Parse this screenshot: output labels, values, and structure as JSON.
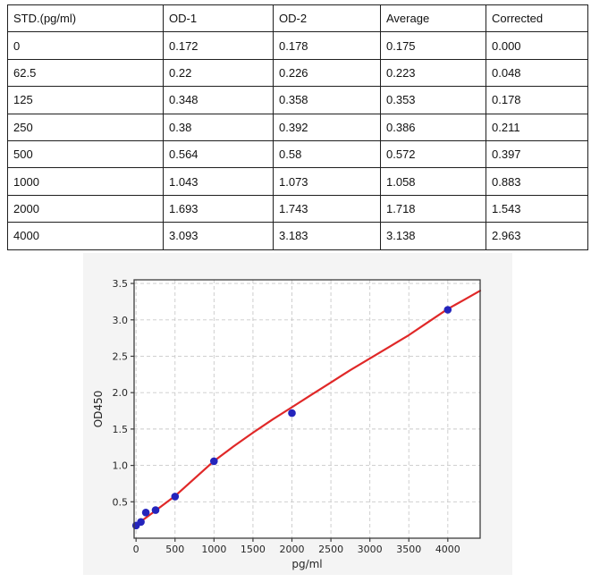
{
  "table": {
    "headers": [
      "STD.(pg/ml)",
      "OD-1",
      "OD-2",
      "Average",
      "Corrected"
    ],
    "rows": [
      [
        "0",
        "0.172",
        "0.178",
        "0.175",
        "0.000"
      ],
      [
        "62.5",
        "0.22",
        "0.226",
        "0.223",
        "0.048"
      ],
      [
        "125",
        "0.348",
        "0.358",
        "0.353",
        "0.178"
      ],
      [
        "250",
        "0.38",
        "0.392",
        "0.386",
        "0.211"
      ],
      [
        "500",
        "0.564",
        "0.58",
        "0.572",
        "0.397"
      ],
      [
        "1000",
        "1.043",
        "1.073",
        "1.058",
        "0.883"
      ],
      [
        "2000",
        "1.693",
        "1.743",
        "1.718",
        "1.543"
      ],
      [
        "4000",
        "3.093",
        "3.183",
        "3.138",
        "2.963"
      ]
    ]
  },
  "chart_data": {
    "type": "scatter",
    "title": "",
    "xlabel": "pg/ml",
    "ylabel": "OD450",
    "xlim": [
      -25,
      4415
    ],
    "ylim": [
      0,
      3.55
    ],
    "grid": true,
    "x_ticks": [
      0,
      500,
      1000,
      1500,
      2000,
      2500,
      3000,
      3500,
      4000
    ],
    "x_tick_labels": [
      "0",
      "500",
      "1000",
      "1500",
      "2000",
      "2500",
      "3000",
      "3500",
      "4000"
    ],
    "y_ticks": [
      0.5,
      1.0,
      1.5,
      2.0,
      2.5,
      3.0,
      3.5
    ],
    "y_tick_labels": [
      "0.5",
      "1.0",
      "1.5",
      "2.0",
      "2.5",
      "3.0",
      "3.5"
    ],
    "points": [
      [
        0,
        0.175
      ],
      [
        62.5,
        0.223
      ],
      [
        125,
        0.353
      ],
      [
        250,
        0.386
      ],
      [
        500,
        0.572
      ],
      [
        1000,
        1.058
      ],
      [
        2000,
        1.718
      ],
      [
        4000,
        3.138
      ]
    ],
    "fit_curve": [
      [
        0,
        0.18
      ],
      [
        250,
        0.38
      ],
      [
        500,
        0.58
      ],
      [
        750,
        0.82
      ],
      [
        1000,
        1.06
      ],
      [
        1250,
        1.26
      ],
      [
        1500,
        1.45
      ],
      [
        1750,
        1.63
      ],
      [
        2000,
        1.8
      ],
      [
        2250,
        1.97
      ],
      [
        2500,
        2.14
      ],
      [
        2750,
        2.31
      ],
      [
        3000,
        2.47
      ],
      [
        3250,
        2.63
      ],
      [
        3500,
        2.79
      ],
      [
        3750,
        2.97
      ],
      [
        4000,
        3.15
      ],
      [
        4200,
        3.27
      ],
      [
        4415,
        3.4
      ]
    ],
    "colors": {
      "point": "#2424bc",
      "curve": "#e02828",
      "figure_bg": "#f4f4f4",
      "plot_bg": "#ffffff",
      "grid": "#c9c9c9",
      "spine": "#3d3d3d",
      "tick_text": "#262626"
    }
  }
}
